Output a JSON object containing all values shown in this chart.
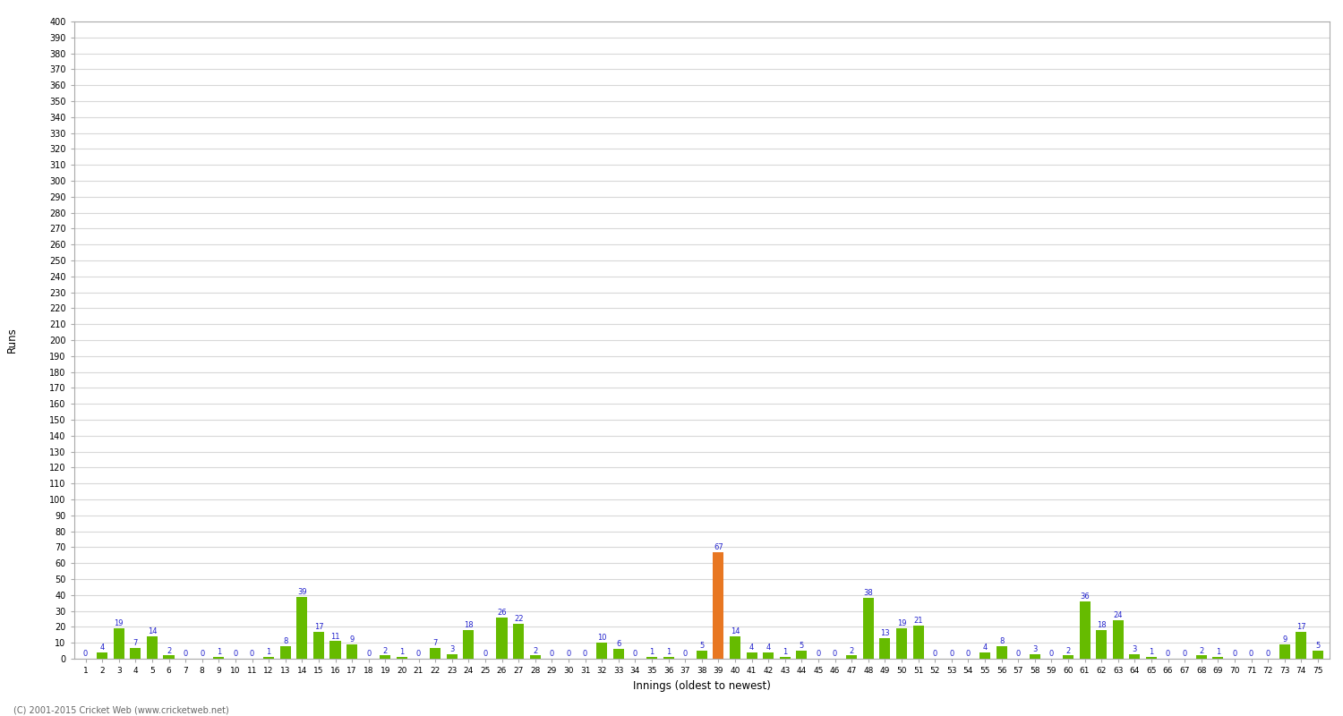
{
  "xlabel": "Innings (oldest to newest)",
  "ylabel": "Runs",
  "fig_bg_color": "#ffffff",
  "plot_bg_color": "#ffffff",
  "grid_color": "#d8d8d8",
  "bar_color_green": "#66bb00",
  "bar_color_orange": "#e87722",
  "label_color": "#2222cc",
  "footer": "(C) 2001-2015 Cricket Web (www.cricketweb.net)",
  "ylim_max": 400,
  "innings": [
    1,
    2,
    3,
    4,
    5,
    6,
    7,
    8,
    9,
    10,
    11,
    12,
    13,
    14,
    15,
    16,
    17,
    18,
    19,
    20,
    21,
    22,
    23,
    24,
    25,
    26,
    27,
    28,
    29,
    30,
    31,
    32,
    33,
    34,
    35,
    36,
    37,
    38,
    39,
    40,
    41,
    42,
    43,
    44,
    45,
    46,
    47,
    48,
    49,
    50,
    51,
    52,
    53,
    54,
    55,
    56,
    57,
    58,
    59,
    60,
    61,
    62,
    63,
    64,
    65,
    66,
    67,
    68,
    69,
    70,
    71,
    72,
    73,
    74,
    75
  ],
  "scores": [
    0,
    4,
    19,
    7,
    14,
    2,
    0,
    0,
    1,
    0,
    0,
    1,
    8,
    39,
    17,
    11,
    9,
    0,
    2,
    1,
    0,
    7,
    3,
    18,
    0,
    26,
    22,
    2,
    0,
    0,
    0,
    10,
    6,
    0,
    1,
    1,
    0,
    5,
    67,
    14,
    4,
    4,
    1,
    5,
    0,
    0,
    2,
    38,
    13,
    19,
    21,
    0,
    0,
    0,
    4,
    8,
    0,
    3,
    0,
    2,
    36,
    18,
    24,
    3,
    1,
    0,
    0,
    2,
    1,
    0,
    0,
    0,
    9,
    17,
    5
  ],
  "not_out_idx": 38
}
